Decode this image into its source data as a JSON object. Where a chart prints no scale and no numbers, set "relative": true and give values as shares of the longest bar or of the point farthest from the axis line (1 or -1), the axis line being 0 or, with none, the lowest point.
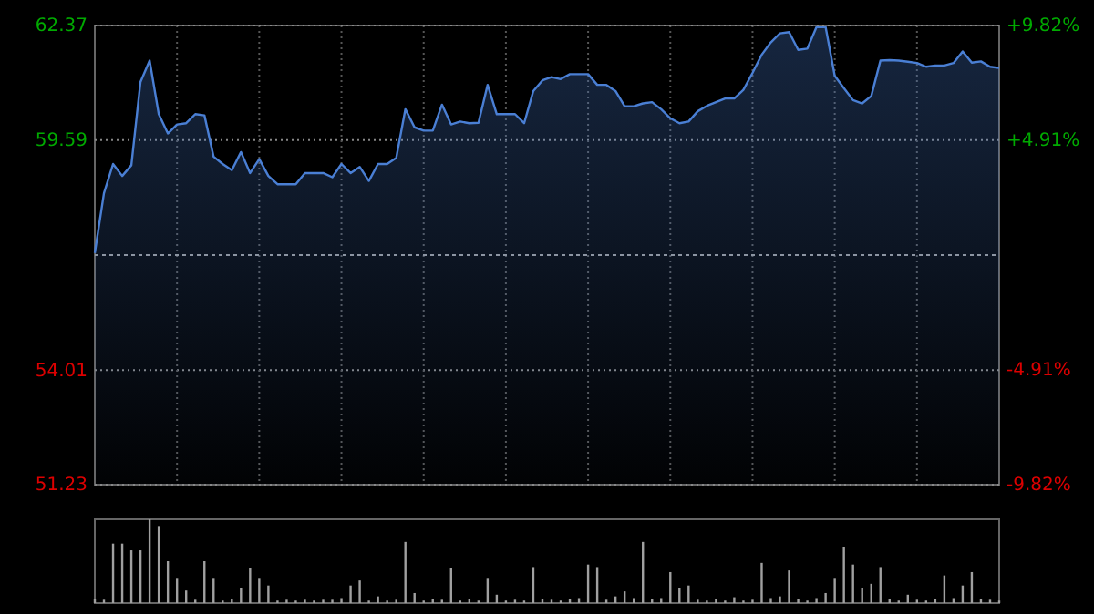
{
  "chart_data": [
    {
      "type": "area",
      "categories": [
        null,
        null,
        null,
        null,
        null,
        null,
        null,
        null,
        null,
        null,
        null,
        null,
        null,
        null,
        null,
        null,
        null,
        null,
        null,
        null,
        null,
        null,
        null,
        null,
        null,
        null,
        null,
        null,
        null,
        null,
        null,
        null,
        null,
        null,
        null,
        null,
        null,
        null,
        null,
        null,
        null,
        null,
        null,
        null,
        null,
        null,
        null,
        null,
        null,
        null,
        null,
        null,
        null,
        null,
        null,
        null,
        null,
        null,
        null,
        null,
        null,
        null,
        null,
        null,
        null,
        null,
        null,
        null,
        null,
        null,
        null,
        null,
        null,
        null,
        null,
        null,
        null,
        null,
        null,
        null,
        null,
        null,
        null,
        null,
        null,
        null,
        null,
        null,
        null,
        null,
        null,
        null,
        null,
        null,
        null,
        null,
        null,
        null,
        null,
        null
      ],
      "series": [
        {
          "color": "#4a7fd4",
          "values": [
            56.85,
            58.3,
            59.01,
            58.72,
            58.98,
            61.0,
            61.52,
            60.22,
            59.75,
            59.97,
            60.0,
            60.22,
            60.19,
            59.19,
            59.01,
            58.86,
            59.3,
            58.79,
            59.13,
            58.72,
            58.52,
            58.52,
            58.52,
            58.79,
            58.79,
            58.79,
            58.69,
            59.01,
            58.79,
            58.94,
            58.6,
            59.01,
            59.01,
            59.16,
            60.34,
            59.9,
            59.82,
            59.82,
            60.45,
            59.97,
            60.04,
            60.0,
            60.01,
            60.93,
            60.22,
            60.22,
            60.22,
            60.0,
            60.78,
            61.04,
            61.12,
            61.07,
            61.19,
            61.19,
            61.19,
            60.93,
            60.93,
            60.78,
            60.41,
            60.41,
            60.48,
            60.51,
            60.34,
            60.12,
            60.0,
            60.04,
            60.29,
            60.42,
            60.51,
            60.6,
            60.6,
            60.81,
            61.22,
            61.66,
            61.96,
            62.18,
            62.21,
            61.78,
            61.81,
            62.33,
            62.33,
            61.15,
            60.85,
            60.56,
            60.48,
            60.66,
            61.52,
            61.53,
            61.52,
            61.49,
            61.46,
            61.37,
            61.4,
            61.4,
            61.46,
            61.74,
            61.47,
            61.5,
            61.37,
            61.34
          ]
        }
      ],
      "ylim": [
        51.23,
        62.37
      ],
      "yticks": [
        51.23,
        54.01,
        59.59,
        62.37
      ],
      "y2lim": [
        -9.82,
        9.82
      ],
      "y2ticks": [
        {
          "value": -9.82,
          "label": "-9.82%"
        },
        {
          "value": -4.91,
          "label": "-4.91%"
        },
        {
          "value": 4.91,
          "label": "+4.91%"
        },
        {
          "value": 9.82,
          "label": "+9.82%"
        }
      ],
      "ref_lines": [
        {
          "axis": "y",
          "value": 56.8,
          "line_style": "dashed"
        }
      ],
      "grid": true
    },
    {
      "type": "bar",
      "relative": true,
      "categories": [
        null,
        null,
        null,
        null,
        null,
        null,
        null,
        null,
        null,
        null,
        null,
        null,
        null,
        null,
        null,
        null,
        null,
        null,
        null,
        null,
        null,
        null,
        null,
        null,
        null,
        null,
        null,
        null,
        null,
        null,
        null,
        null,
        null,
        null,
        null,
        null,
        null,
        null,
        null,
        null,
        null,
        null,
        null,
        null,
        null,
        null,
        null,
        null,
        null,
        null,
        null,
        null,
        null,
        null,
        null,
        null,
        null,
        null,
        null,
        null,
        null,
        null,
        null,
        null,
        null,
        null,
        null,
        null,
        null,
        null,
        null,
        null,
        null,
        null,
        null,
        null,
        null,
        null,
        null,
        null,
        null,
        null,
        null,
        null,
        null,
        null,
        null,
        null,
        null,
        null,
        null,
        null,
        null,
        null,
        null,
        null,
        null,
        null,
        null,
        null
      ],
      "series": [
        {
          "color": "#a0a0a0",
          "values": [
            0.05,
            0.04,
            0.71,
            0.71,
            0.63,
            0.63,
            1.0,
            0.92,
            0.5,
            0.29,
            0.15,
            0.04,
            0.5,
            0.29,
            0.03,
            0.05,
            0.18,
            0.42,
            0.29,
            0.21,
            0.03,
            0.04,
            0.03,
            0.04,
            0.03,
            0.04,
            0.04,
            0.06,
            0.21,
            0.27,
            0.03,
            0.08,
            0.03,
            0.04,
            0.73,
            0.12,
            0.03,
            0.05,
            0.04,
            0.42,
            0.03,
            0.05,
            0.03,
            0.29,
            0.1,
            0.03,
            0.04,
            0.03,
            0.43,
            0.05,
            0.04,
            0.03,
            0.05,
            0.06,
            0.46,
            0.43,
            0.04,
            0.08,
            0.14,
            0.06,
            0.73,
            0.05,
            0.06,
            0.37,
            0.18,
            0.21,
            0.04,
            0.03,
            0.05,
            0.03,
            0.07,
            0.03,
            0.04,
            0.48,
            0.06,
            0.08,
            0.39,
            0.05,
            0.03,
            0.06,
            0.12,
            0.29,
            0.67,
            0.46,
            0.18,
            0.23,
            0.43,
            0.05,
            0.03,
            0.1,
            0.04,
            0.03,
            0.05,
            0.33,
            0.06,
            0.21,
            0.37,
            0.05,
            0.04,
            0.03
          ]
        }
      ]
    }
  ]
}
